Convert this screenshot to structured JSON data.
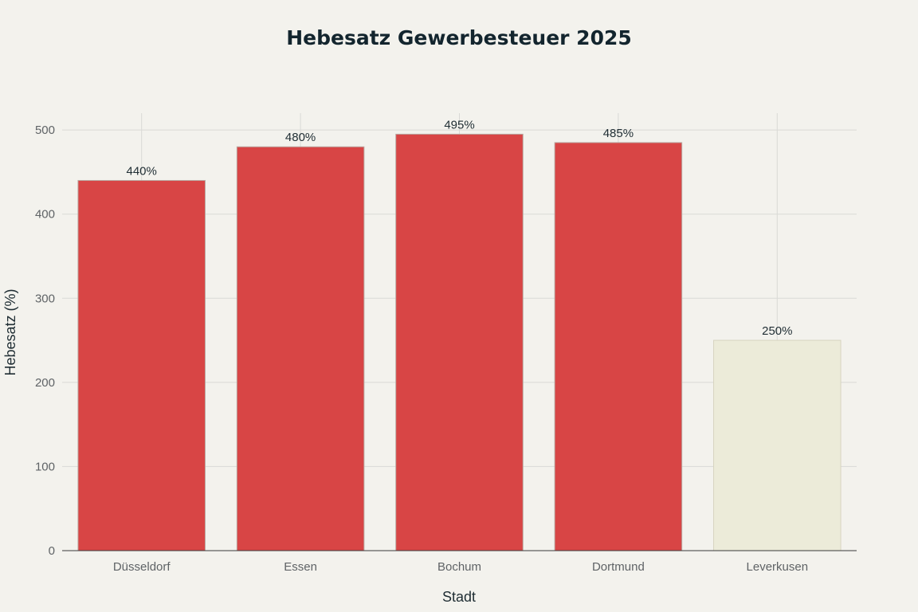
{
  "chart_data": {
    "type": "bar",
    "title": "Hebesatz Gewerbesteuer 2025",
    "xlabel": "Stadt",
    "ylabel": "Hebesatz (%)",
    "categories": [
      "Düsseldorf",
      "Essen",
      "Bochum",
      "Dortmund",
      "Leverkusen"
    ],
    "values": [
      440,
      480,
      495,
      485,
      250
    ],
    "data_labels": [
      "440%",
      "480%",
      "495%",
      "485%",
      "250%"
    ],
    "bar_colors": [
      "#d84545",
      "#d84545",
      "#d84545",
      "#d84545",
      "#ecebd9"
    ],
    "bar_edge_colors": [
      "#b9a7a0",
      "#b9a7a0",
      "#b9a7a0",
      "#b9a7a0",
      "#d7d4c0"
    ],
    "ylim": [
      0,
      520
    ],
    "yticks": [
      0,
      100,
      200,
      300,
      400,
      500
    ],
    "grid": true,
    "legend": "none"
  },
  "colors": {
    "background": "#f3f2ed",
    "grid": "#d9d9d6",
    "title": "#13252e"
  }
}
